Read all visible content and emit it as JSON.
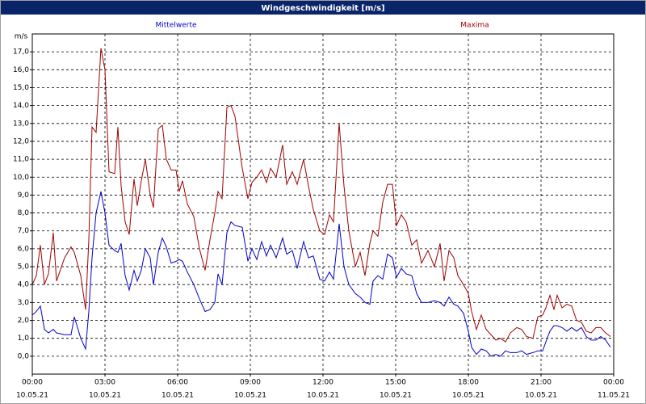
{
  "chart_data": {
    "type": "line",
    "title": "Windgeschwindigkeit [m/s]",
    "ylabel": "m/s",
    "xlim": [
      0,
      1440
    ],
    "xticks": [
      {
        "value": 0,
        "label": "00:00"
      },
      {
        "value": 180,
        "label": "03:00"
      },
      {
        "value": 360,
        "label": "06:00"
      },
      {
        "value": 540,
        "label": "09:00"
      },
      {
        "value": 720,
        "label": "12:00"
      },
      {
        "value": 900,
        "label": "15:00"
      },
      {
        "value": 1080,
        "label": "18:00"
      },
      {
        "value": 1260,
        "label": "21:00"
      },
      {
        "value": 1440,
        "label": "00:00"
      }
    ],
    "xtick_dates": [
      "10.05.21",
      "10.05.21",
      "10.05.21",
      "10.05.21",
      "10.05.21",
      "10.05.21",
      "10.05.21",
      "10.05.21",
      "11.05.21"
    ],
    "ylim": [
      -1,
      18
    ],
    "yticks": [
      {
        "value": 0,
        "label": "0,0"
      },
      {
        "value": 1,
        "label": "1,0"
      },
      {
        "value": 2,
        "label": "2,0"
      },
      {
        "value": 3,
        "label": "3,0"
      },
      {
        "value": 4,
        "label": "4,0"
      },
      {
        "value": 5,
        "label": "5,0"
      },
      {
        "value": 6,
        "label": "6,0"
      },
      {
        "value": 7,
        "label": "7,0"
      },
      {
        "value": 8,
        "label": "8,0"
      },
      {
        "value": 9,
        "label": "9,0"
      },
      {
        "value": 10,
        "label": "10,0"
      },
      {
        "value": 11,
        "label": "11,0"
      },
      {
        "value": 12,
        "label": "12,0"
      },
      {
        "value": 13,
        "label": "13,0"
      },
      {
        "value": 14,
        "label": "14,0"
      },
      {
        "value": 15,
        "label": "15,0"
      },
      {
        "value": 16,
        "label": "16,0"
      },
      {
        "value": 17,
        "label": "17,0"
      }
    ],
    "grid": true,
    "x": [
      0,
      10,
      20,
      30,
      40,
      52,
      60,
      80,
      96,
      104,
      120,
      132,
      140,
      148,
      158,
      170,
      180,
      190,
      204,
      212,
      220,
      230,
      240,
      252,
      260,
      270,
      280,
      292,
      300,
      312,
      322,
      332,
      344,
      356,
      364,
      372,
      384,
      400,
      414,
      428,
      440,
      452,
      460,
      470,
      482,
      492,
      502,
      520,
      534,
      544,
      556,
      568,
      580,
      590,
      604,
      620,
      630,
      644,
      656,
      672,
      684,
      696,
      712,
      724,
      736,
      746,
      760,
      772,
      784,
      800,
      812,
      824,
      836,
      844,
      856,
      868,
      880,
      892,
      902,
      914,
      926,
      940,
      952,
      964,
      980,
      996,
      1010,
      1020,
      1032,
      1044,
      1054,
      1068,
      1080,
      1088,
      1100,
      1112,
      1124,
      1136,
      1148,
      1160,
      1172,
      1184,
      1200,
      1212,
      1224,
      1240,
      1252,
      1264,
      1272,
      1282,
      1292,
      1300,
      1312,
      1324,
      1336,
      1348,
      1360,
      1372,
      1384,
      1396,
      1408,
      1420,
      1432
    ],
    "series": [
      {
        "name": "Mittelwerte",
        "color": "#0000c8",
        "values": [
          2.3,
          2.5,
          2.8,
          1.5,
          1.3,
          1.5,
          1.3,
          1.2,
          1.2,
          2.2,
          1.0,
          0.4,
          2.5,
          5.5,
          8.0,
          9.2,
          8.0,
          6.2,
          5.9,
          5.8,
          6.3,
          4.5,
          3.7,
          4.8,
          4.2,
          4.8,
          6.0,
          5.5,
          4.0,
          5.8,
          6.6,
          6.1,
          5.2,
          5.3,
          5.4,
          5.3,
          4.7,
          4.0,
          3.2,
          2.5,
          2.6,
          3.0,
          4.6,
          4.0,
          6.9,
          7.5,
          7.3,
          7.2,
          5.3,
          6.0,
          5.4,
          6.4,
          5.6,
          6.2,
          5.5,
          6.6,
          5.7,
          5.9,
          4.9,
          6.4,
          5.5,
          5.6,
          4.3,
          4.2,
          4.7,
          4.3,
          7.4,
          5.0,
          4.0,
          3.5,
          3.3,
          3.0,
          2.9,
          4.2,
          4.5,
          4.3,
          5.7,
          5.5,
          4.4,
          4.9,
          4.6,
          4.5,
          3.5,
          3.0,
          3.0,
          3.1,
          3.0,
          2.8,
          3.3,
          2.9,
          2.8,
          2.4,
          1.4,
          0.5,
          0.1,
          0.4,
          0.3,
          0.0,
          0.1,
          0.0,
          0.3,
          0.2,
          0.2,
          0.3,
          0.1,
          0.2,
          0.3,
          0.3,
          0.8,
          1.4,
          1.7,
          1.7,
          1.6,
          1.4,
          1.6,
          1.4,
          1.6,
          1.1,
          0.9,
          0.9,
          1.1,
          0.9,
          0.5
        ]
      },
      {
        "name": "Maxima",
        "color": "#a00000",
        "values": [
          4.0,
          4.5,
          6.2,
          4.0,
          4.6,
          6.9,
          4.2,
          5.5,
          6.1,
          5.8,
          4.5,
          2.6,
          6.5,
          12.8,
          12.5,
          17.2,
          16.0,
          10.3,
          10.2,
          12.8,
          9.5,
          7.5,
          6.8,
          9.9,
          8.4,
          9.8,
          11.0,
          9.0,
          8.3,
          12.7,
          12.9,
          11.0,
          10.4,
          10.4,
          9.2,
          9.8,
          8.5,
          7.8,
          6.0,
          4.8,
          6.5,
          8.0,
          9.2,
          8.8,
          13.9,
          14.0,
          13.4,
          10.5,
          8.8,
          9.7,
          10.0,
          10.4,
          9.7,
          10.5,
          10.0,
          11.8,
          9.6,
          10.3,
          9.6,
          11.0,
          9.5,
          8.2,
          7.0,
          6.8,
          7.9,
          7.5,
          13.0,
          9.5,
          7.0,
          5.0,
          5.8,
          4.5,
          6.3,
          7.0,
          6.7,
          8.6,
          9.6,
          9.6,
          7.3,
          7.9,
          7.5,
          6.2,
          6.5,
          5.2,
          5.9,
          5.0,
          6.3,
          4.2,
          5.9,
          5.5,
          4.5,
          4.0,
          3.5,
          2.5,
          1.5,
          2.3,
          1.5,
          1.2,
          0.9,
          1.0,
          0.8,
          1.3,
          1.6,
          1.5,
          1.1,
          1.0,
          2.2,
          2.3,
          2.7,
          3.4,
          2.6,
          3.4,
          2.7,
          2.9,
          2.8,
          2.0,
          1.9,
          1.4,
          1.3,
          1.6,
          1.6,
          1.3,
          1.1
        ]
      }
    ]
  }
}
